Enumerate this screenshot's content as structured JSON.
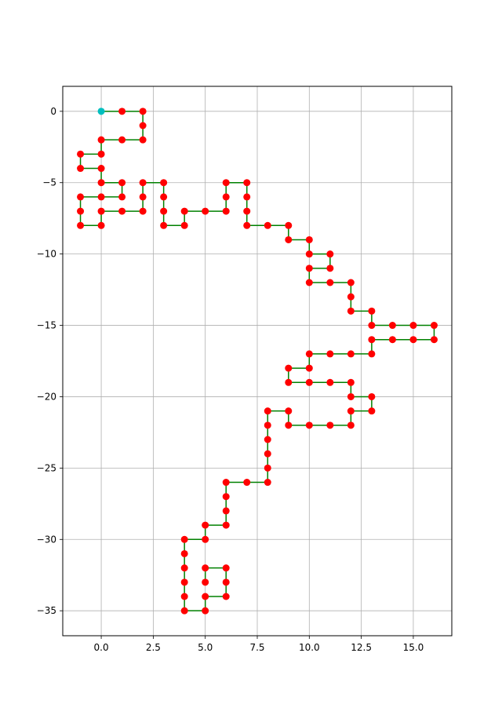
{
  "chart_data": {
    "type": "line",
    "title": "",
    "xlabel": "",
    "ylabel": "",
    "xlim": [
      -1.85,
      16.85
    ],
    "ylim": [
      -36.75,
      1.75
    ],
    "grid": true,
    "xticks": [
      0.0,
      2.5,
      5.0,
      7.5,
      10.0,
      12.5,
      15.0
    ],
    "xtick_labels": [
      "0.0",
      "2.5",
      "5.0",
      "7.5",
      "10.0",
      "12.5",
      "15.0"
    ],
    "yticks": [
      0,
      -5,
      -10,
      -15,
      -20,
      -25,
      -30,
      -35
    ],
    "ytick_labels": [
      "0",
      "−5",
      "−10",
      "−15",
      "−20",
      "−25",
      "−30",
      "−35"
    ],
    "colors": {
      "path": "#008000",
      "point": "#ff0000",
      "start": "#00bfbf",
      "grid": "#b0b0b0"
    },
    "start_point": [
      0,
      0
    ],
    "path": [
      [
        0,
        0
      ],
      [
        1,
        0
      ],
      [
        2,
        0
      ],
      [
        2,
        -1
      ],
      [
        2,
        -2
      ],
      [
        1,
        -2
      ],
      [
        0,
        -2
      ],
      [
        0,
        -3
      ],
      [
        -1,
        -3
      ],
      [
        -1,
        -4
      ],
      [
        0,
        -4
      ],
      [
        0,
        -5
      ],
      [
        1,
        -5
      ],
      [
        1,
        -6
      ],
      [
        0,
        -6
      ],
      [
        -1,
        -6
      ],
      [
        -1,
        -7
      ],
      [
        -1,
        -8
      ],
      [
        0,
        -8
      ],
      [
        0,
        -7
      ],
      [
        1,
        -7
      ],
      [
        2,
        -7
      ],
      [
        2,
        -6
      ],
      [
        2,
        -5
      ],
      [
        3,
        -5
      ],
      [
        3,
        -6
      ],
      [
        3,
        -7
      ],
      [
        3,
        -8
      ],
      [
        4,
        -8
      ],
      [
        4,
        -7
      ],
      [
        5,
        -7
      ],
      [
        6,
        -7
      ],
      [
        6,
        -6
      ],
      [
        6,
        -5
      ],
      [
        7,
        -5
      ],
      [
        7,
        -6
      ],
      [
        7,
        -7
      ],
      [
        7,
        -8
      ],
      [
        8,
        -8
      ],
      [
        9,
        -8
      ],
      [
        9,
        -9
      ],
      [
        10,
        -9
      ],
      [
        10,
        -10
      ],
      [
        11,
        -10
      ],
      [
        11,
        -11
      ],
      [
        10,
        -11
      ],
      [
        10,
        -12
      ],
      [
        11,
        -12
      ],
      [
        12,
        -12
      ],
      [
        12,
        -13
      ],
      [
        12,
        -14
      ],
      [
        13,
        -14
      ],
      [
        13,
        -15
      ],
      [
        14,
        -15
      ],
      [
        15,
        -15
      ],
      [
        16,
        -15
      ],
      [
        16,
        -16
      ],
      [
        15,
        -16
      ],
      [
        14,
        -16
      ],
      [
        13,
        -16
      ],
      [
        13,
        -17
      ],
      [
        12,
        -17
      ],
      [
        11,
        -17
      ],
      [
        10,
        -17
      ],
      [
        10,
        -18
      ],
      [
        9,
        -18
      ],
      [
        9,
        -19
      ],
      [
        10,
        -19
      ],
      [
        11,
        -19
      ],
      [
        12,
        -19
      ],
      [
        12,
        -20
      ],
      [
        13,
        -20
      ],
      [
        13,
        -21
      ],
      [
        12,
        -21
      ],
      [
        12,
        -22
      ],
      [
        11,
        -22
      ],
      [
        10,
        -22
      ],
      [
        9,
        -22
      ],
      [
        9,
        -21
      ],
      [
        8,
        -21
      ],
      [
        8,
        -22
      ],
      [
        8,
        -23
      ],
      [
        8,
        -24
      ],
      [
        8,
        -25
      ],
      [
        8,
        -26
      ],
      [
        7,
        -26
      ],
      [
        6,
        -26
      ],
      [
        6,
        -27
      ],
      [
        6,
        -28
      ],
      [
        6,
        -29
      ],
      [
        5,
        -29
      ],
      [
        5,
        -30
      ],
      [
        4,
        -30
      ],
      [
        4,
        -31
      ],
      [
        4,
        -32
      ],
      [
        4,
        -33
      ],
      [
        4,
        -34
      ],
      [
        4,
        -35
      ],
      [
        5,
        -35
      ],
      [
        5,
        -34
      ],
      [
        6,
        -34
      ],
      [
        6,
        -33
      ],
      [
        6,
        -32
      ],
      [
        5,
        -32
      ],
      [
        5,
        -33
      ]
    ]
  }
}
